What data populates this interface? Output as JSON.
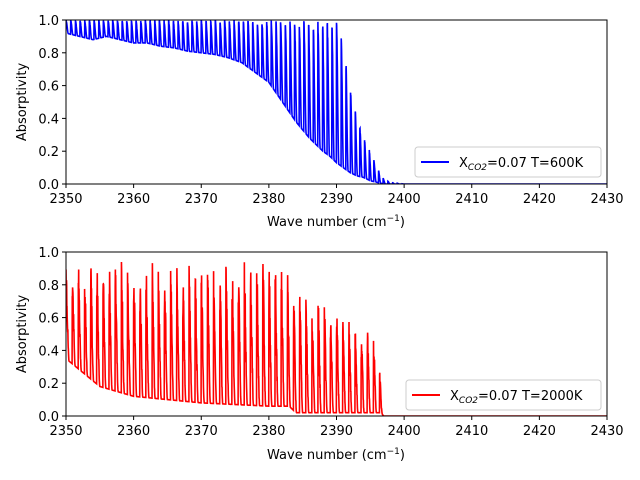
{
  "chart_data": [
    {
      "type": "line",
      "xlabel": "Wave number (cm",
      "xlabel_sup": "−1",
      "xlabel_tail": ")",
      "ylabel": "Absorptivity",
      "xlim": [
        2350,
        2430
      ],
      "ylim": [
        0.0,
        1.0
      ],
      "xticks": [
        2350,
        2360,
        2370,
        2380,
        2390,
        2400,
        2410,
        2420,
        2430
      ],
      "yticks": [
        "0.0",
        "0.2",
        "0.4",
        "0.6",
        "0.8",
        "1.0"
      ],
      "legend_loc": "lower-right",
      "series": [
        {
          "name_prefix": "X",
          "name_sub": "CO2",
          "name_suffix": "=0.07 T=600K",
          "color": "#0000ff",
          "x": [
            2350,
            2352,
            2354,
            2356,
            2358,
            2360,
            2362,
            2364,
            2366,
            2368,
            2370,
            2372,
            2374,
            2376,
            2378,
            2380,
            2381,
            2382,
            2383,
            2384,
            2385,
            2386,
            2387,
            2388,
            2389,
            2390,
            2391,
            2392,
            2393,
            2394,
            2395,
            2396,
            2397,
            2398,
            2400,
            2410,
            2420,
            2430
          ],
          "peak": [
            1.0,
            1.0,
            1.0,
            1.0,
            1.0,
            1.0,
            1.0,
            1.0,
            1.0,
            1.0,
            1.0,
            1.0,
            1.0,
            1.0,
            1.0,
            1.0,
            1.0,
            1.0,
            1.0,
            1.0,
            1.0,
            1.0,
            1.0,
            1.0,
            1.0,
            1.0,
            0.86,
            0.6,
            0.42,
            0.28,
            0.2,
            0.1,
            0.03,
            0.01,
            0.0,
            0.0,
            0.0,
            0.0
          ],
          "trough": [
            0.92,
            0.9,
            0.88,
            0.9,
            0.88,
            0.86,
            0.86,
            0.84,
            0.83,
            0.81,
            0.8,
            0.79,
            0.77,
            0.74,
            0.68,
            0.62,
            0.56,
            0.5,
            0.44,
            0.38,
            0.33,
            0.28,
            0.24,
            0.2,
            0.17,
            0.13,
            0.1,
            0.07,
            0.05,
            0.04,
            0.02,
            0.01,
            0.0,
            0.0,
            0.0,
            0.0,
            0.0,
            0.0
          ]
        }
      ]
    },
    {
      "type": "line",
      "xlabel": "Wave number (cm",
      "xlabel_sup": "−1",
      "xlabel_tail": ")",
      "ylabel": "Absorptivity",
      "xlim": [
        2350,
        2430
      ],
      "ylim": [
        0.0,
        1.0
      ],
      "xticks": [
        2350,
        2360,
        2370,
        2380,
        2390,
        2400,
        2410,
        2420,
        2430
      ],
      "yticks": [
        "0.0",
        "0.2",
        "0.4",
        "0.6",
        "0.8",
        "1.0"
      ],
      "legend_loc": "lower-right",
      "series": [
        {
          "name_prefix": "X",
          "name_sub": "CO2",
          "name_suffix": "=0.07 T=2000K",
          "color": "#ff0000",
          "x": [
            2350,
            2355,
            2360,
            2365,
            2370,
            2375,
            2380,
            2383,
            2384,
            2386,
            2388,
            2390,
            2392,
            2394,
            2396,
            2396.5,
            2397,
            2400,
            2410,
            2420,
            2430
          ],
          "peak": [
            0.9,
            0.95,
            0.95,
            0.96,
            0.9,
            0.96,
            0.97,
            0.9,
            0.78,
            0.75,
            0.72,
            0.7,
            0.62,
            0.56,
            0.5,
            0.24,
            0.0,
            0.0,
            0.0,
            0.0,
            0.0
          ],
          "trough": [
            0.35,
            0.18,
            0.12,
            0.1,
            0.08,
            0.07,
            0.06,
            0.06,
            0.02,
            0.02,
            0.02,
            0.02,
            0.02,
            0.02,
            0.02,
            0.02,
            0.0,
            0.0,
            0.0,
            0.0,
            0.0
          ]
        }
      ]
    }
  ]
}
